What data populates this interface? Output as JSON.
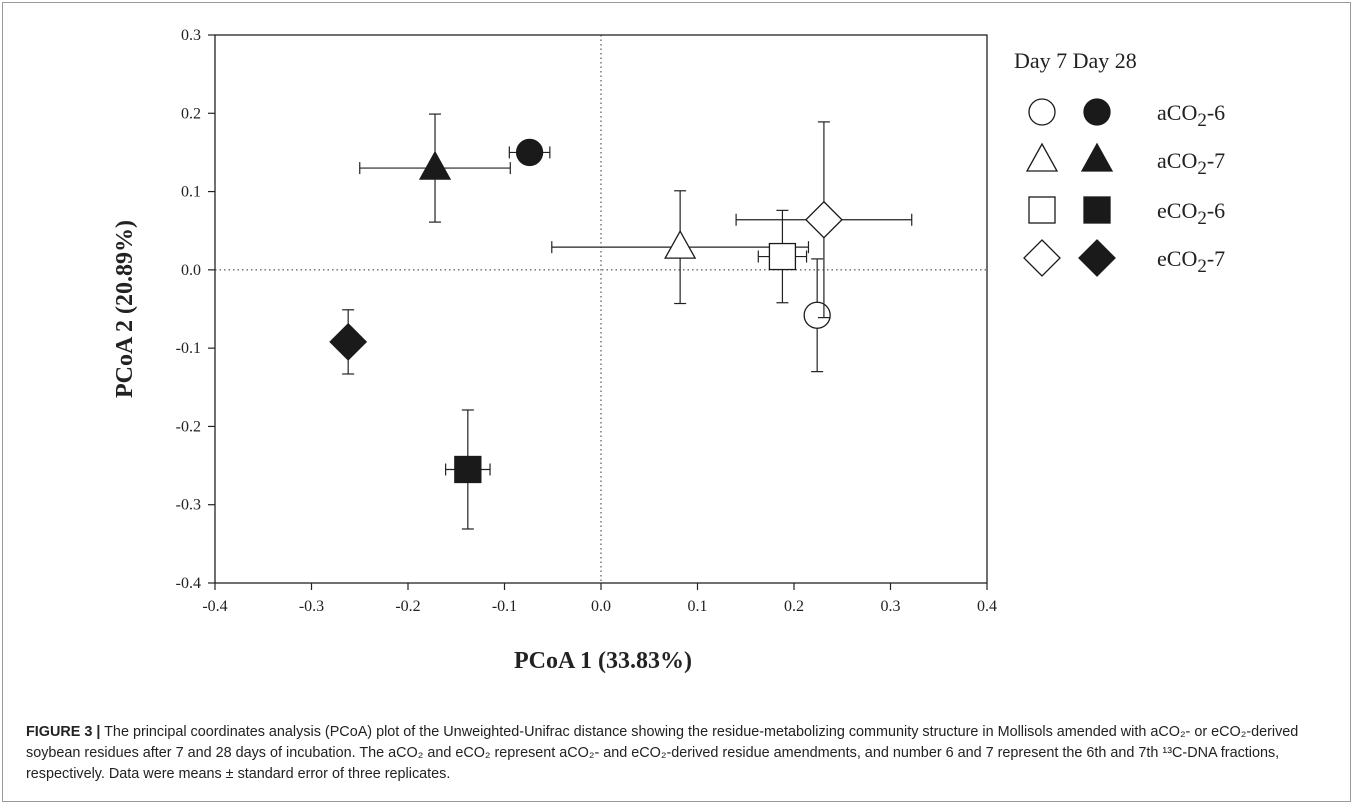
{
  "chart_data": {
    "type": "scatter",
    "xlabel": "PCoA 1 (33.83%)",
    "ylabel": "PCoA 2 (20.89%)",
    "xlim": [
      -0.4,
      0.4
    ],
    "ylim": [
      -0.4,
      0.3
    ],
    "xticks": [
      "-0.4",
      "-0.3",
      "-0.2",
      "-0.1",
      "0.0",
      "0.1",
      "0.2",
      "0.3",
      "0.4"
    ],
    "yticks": [
      "0.3",
      "0.2",
      "0.1",
      "0.0",
      "-0.1",
      "-0.2",
      "-0.3",
      "-0.4"
    ],
    "reference_lines": {
      "x": 0,
      "y": 0,
      "style": "dotted"
    },
    "legend": {
      "placement": "right",
      "headers": [
        "Day 7",
        "Day 28"
      ],
      "rows": [
        "aCO2-6",
        "aCO2-7",
        "eCO2-6",
        "eCO2-7"
      ]
    },
    "series": [
      {
        "name": "aCO2-6",
        "day": "Day 7",
        "marker": "circle",
        "fill": "open",
        "x": 0.224,
        "y": -0.058,
        "xerr": 0.0,
        "yerr": 0.072
      },
      {
        "name": "aCO2-6",
        "day": "Day 28",
        "marker": "circle",
        "fill": "filled",
        "x": -0.074,
        "y": 0.15,
        "xerr": 0.021,
        "yerr": 0.0
      },
      {
        "name": "aCO2-7",
        "day": "Day 7",
        "marker": "triangle",
        "fill": "open",
        "x": 0.082,
        "y": 0.029,
        "xerr": 0.133,
        "yerr": 0.072
      },
      {
        "name": "aCO2-7",
        "day": "Day 28",
        "marker": "triangle",
        "fill": "filled",
        "x": -0.172,
        "y": 0.13,
        "xerr": 0.078,
        "yerr": 0.069
      },
      {
        "name": "eCO2-6",
        "day": "Day 7",
        "marker": "square",
        "fill": "open",
        "x": 0.188,
        "y": 0.017,
        "xerr": 0.025,
        "yerr": 0.059
      },
      {
        "name": "eCO2-6",
        "day": "Day 28",
        "marker": "square",
        "fill": "filled",
        "x": -0.138,
        "y": -0.255,
        "xerr": 0.023,
        "yerr": 0.076
      },
      {
        "name": "eCO2-7",
        "day": "Day 7",
        "marker": "diamond",
        "fill": "open",
        "x": 0.231,
        "y": 0.064,
        "xerr": 0.091,
        "yerr": 0.125
      },
      {
        "name": "eCO2-7",
        "day": "Day 28",
        "marker": "diamond",
        "fill": "filled",
        "x": -0.262,
        "y": -0.092,
        "xerr": 0.009,
        "yerr": 0.041
      }
    ]
  },
  "caption": {
    "label": "FIGURE 3 |",
    "text": " The principal coordinates analysis (PCoA) plot of the Unweighted-Unifrac distance showing the residue-metabolizing community structure in Mollisols amended with aCO₂- or eCO₂-derived soybean residues after 7 and 28 days of incubation. The aCO₂ and eCO₂ represent aCO₂- and eCO₂-derived residue amendments, and number 6 and 7 represent the 6th and 7th ¹³C-DNA fractions, respectively. Data were means ± standard error of three replicates."
  }
}
